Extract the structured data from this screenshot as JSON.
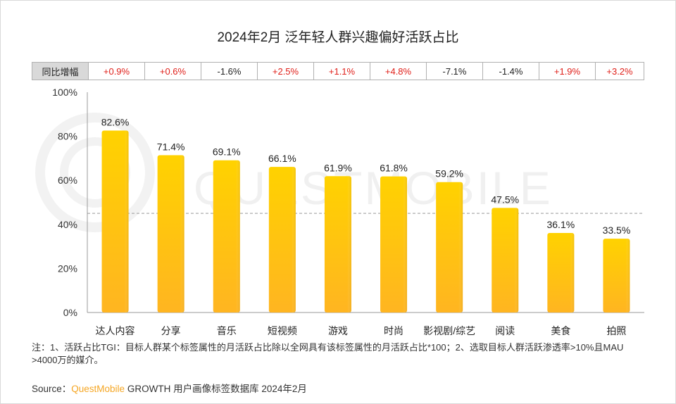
{
  "title": "2024年2月 泛年轻人群兴趣偏好活跃占比",
  "yoy": {
    "label": "同比增幅",
    "values": [
      "+0.9%",
      "+0.6%",
      "-1.6%",
      "+2.5%",
      "+1.1%",
      "+4.8%",
      "-7.1%",
      "-1.4%",
      "+1.9%",
      "+3.2%"
    ]
  },
  "chart_data": {
    "type": "bar",
    "title": "2024年2月 泛年轻人群兴趣偏好活跃占比",
    "categories": [
      "达人内容",
      "分享",
      "音乐",
      "短视频",
      "游戏",
      "时尚",
      "影视剧/综艺",
      "阅读",
      "美食",
      "拍照"
    ],
    "values": [
      82.6,
      71.4,
      69.1,
      66.1,
      61.9,
      61.8,
      59.2,
      47.5,
      36.1,
      33.5
    ],
    "value_labels": [
      "82.6%",
      "71.4%",
      "69.1%",
      "66.1%",
      "61.9%",
      "61.8%",
      "59.2%",
      "47.5%",
      "36.1%",
      "33.5%"
    ],
    "y_ticks": [
      0,
      20,
      40,
      60,
      80,
      100
    ],
    "y_tick_labels": [
      "0%",
      "20%",
      "40%",
      "60%",
      "80%",
      "100%"
    ],
    "ylim": [
      0,
      100
    ],
    "reference_line": 45,
    "xlabel": "",
    "ylabel": ""
  },
  "watermark": "QUESTMOBILE",
  "note": "注：1、活跃占比TGI：目标人群某个标签属性的月活跃占比除以全网具有该标签属性的月活跃占比*100；2、选取目标人群活跃渗透率>10%且MAU >4000万的媒介。",
  "source": {
    "prefix": "Source：",
    "brand": "QuestMobile",
    "suffix": " GROWTH 用户画像标签数据库 2024年2月"
  },
  "colors": {
    "bar_top": "#ffd000",
    "bar_bottom": "#ffb820",
    "positive": "#e0201a"
  }
}
